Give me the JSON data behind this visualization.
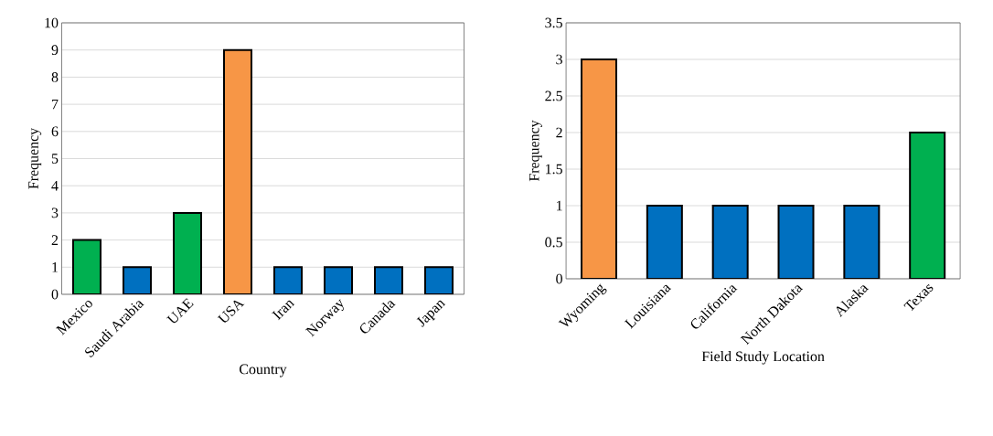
{
  "chart_data": [
    {
      "type": "bar",
      "categories": [
        "Mexico",
        "Saudi Arabia",
        "UAE",
        "USA",
        "Iran",
        "Norway",
        "Canada",
        "Japan"
      ],
      "values": [
        2,
        1,
        3,
        9,
        1,
        1,
        1,
        1
      ],
      "colors": [
        "#00b050",
        "#0070c0",
        "#00b050",
        "#f79646",
        "#0070c0",
        "#0070c0",
        "#0070c0",
        "#0070c0"
      ],
      "xlabel": "Country",
      "ylabel": "Frequency",
      "ylim": [
        0,
        10
      ],
      "yticks": [
        0,
        1,
        2,
        3,
        4,
        5,
        6,
        7,
        8,
        9,
        10
      ],
      "grid": "y"
    },
    {
      "type": "bar",
      "categories": [
        "Wyoming",
        "Louisiana",
        "California",
        "North Dakota",
        "Alaska",
        "Texas"
      ],
      "values": [
        3,
        1,
        1,
        1,
        1,
        2
      ],
      "colors": [
        "#f79646",
        "#0070c0",
        "#0070c0",
        "#0070c0",
        "#0070c0",
        "#00b050"
      ],
      "xlabel": "Field Study Location",
      "ylabel": "Frequency",
      "ylim": [
        0,
        3.5
      ],
      "yticks": [
        0,
        0.5,
        1,
        1.5,
        2,
        2.5,
        3,
        3.5
      ],
      "grid": "y"
    }
  ]
}
